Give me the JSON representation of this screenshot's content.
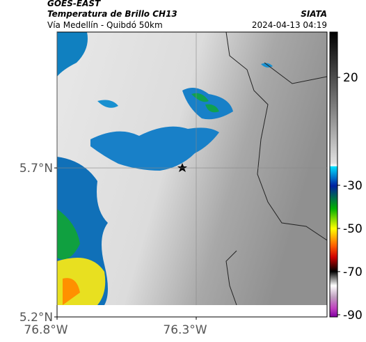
{
  "header": {
    "satellite": "GOES-EAST",
    "product": "Temperatura de Brillo CH13",
    "source": "SIATA",
    "route": "Vía Medellín - Quibdó 50km",
    "timestamp": "2024-04-13 04:19"
  },
  "map": {
    "xlim": [
      -76.8,
      -75.83
    ],
    "xticks": [
      {
        "value": -76.8,
        "label": "76.8°W"
      },
      {
        "value": -76.3,
        "label": "76.3°W"
      }
    ],
    "ylim": [
      5.2,
      6.156
    ],
    "yticks": [
      {
        "value": 5.2,
        "label": "5.2°N"
      },
      {
        "value": 5.7,
        "label": "5.7°N"
      }
    ],
    "grid": true
  },
  "colorbar": {
    "clim": [
      41,
      -91
    ],
    "ticks": [
      20,
      -30,
      -50,
      -70,
      -90
    ]
  }
}
